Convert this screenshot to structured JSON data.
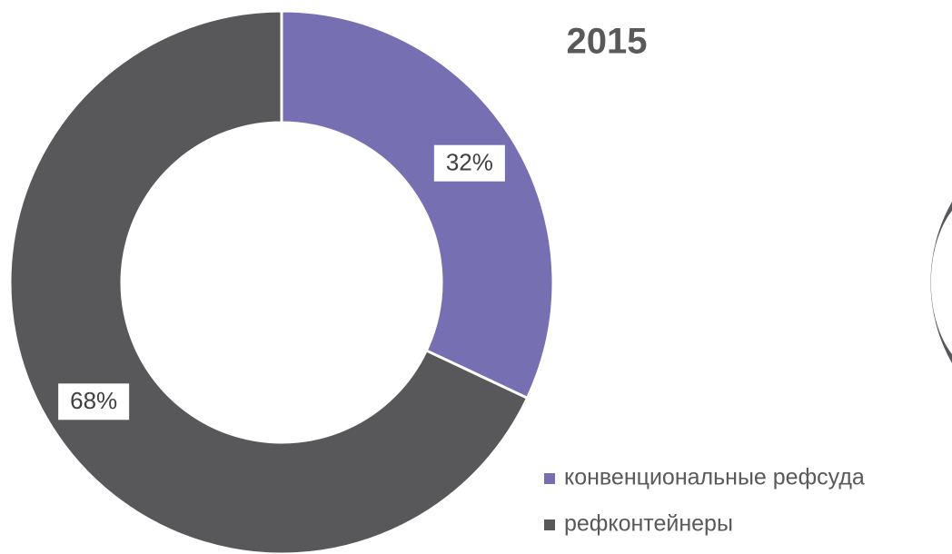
{
  "chart_data": {
    "type": "donut",
    "title": "2015",
    "categories": [
      "конвенциональные рефсуда",
      "рефконтейнеры"
    ],
    "values": [
      32,
      68
    ],
    "value_labels": [
      "32%",
      "68%"
    ],
    "colors": [
      "#7670b3",
      "#58585a"
    ],
    "legend": "bottom-right"
  }
}
